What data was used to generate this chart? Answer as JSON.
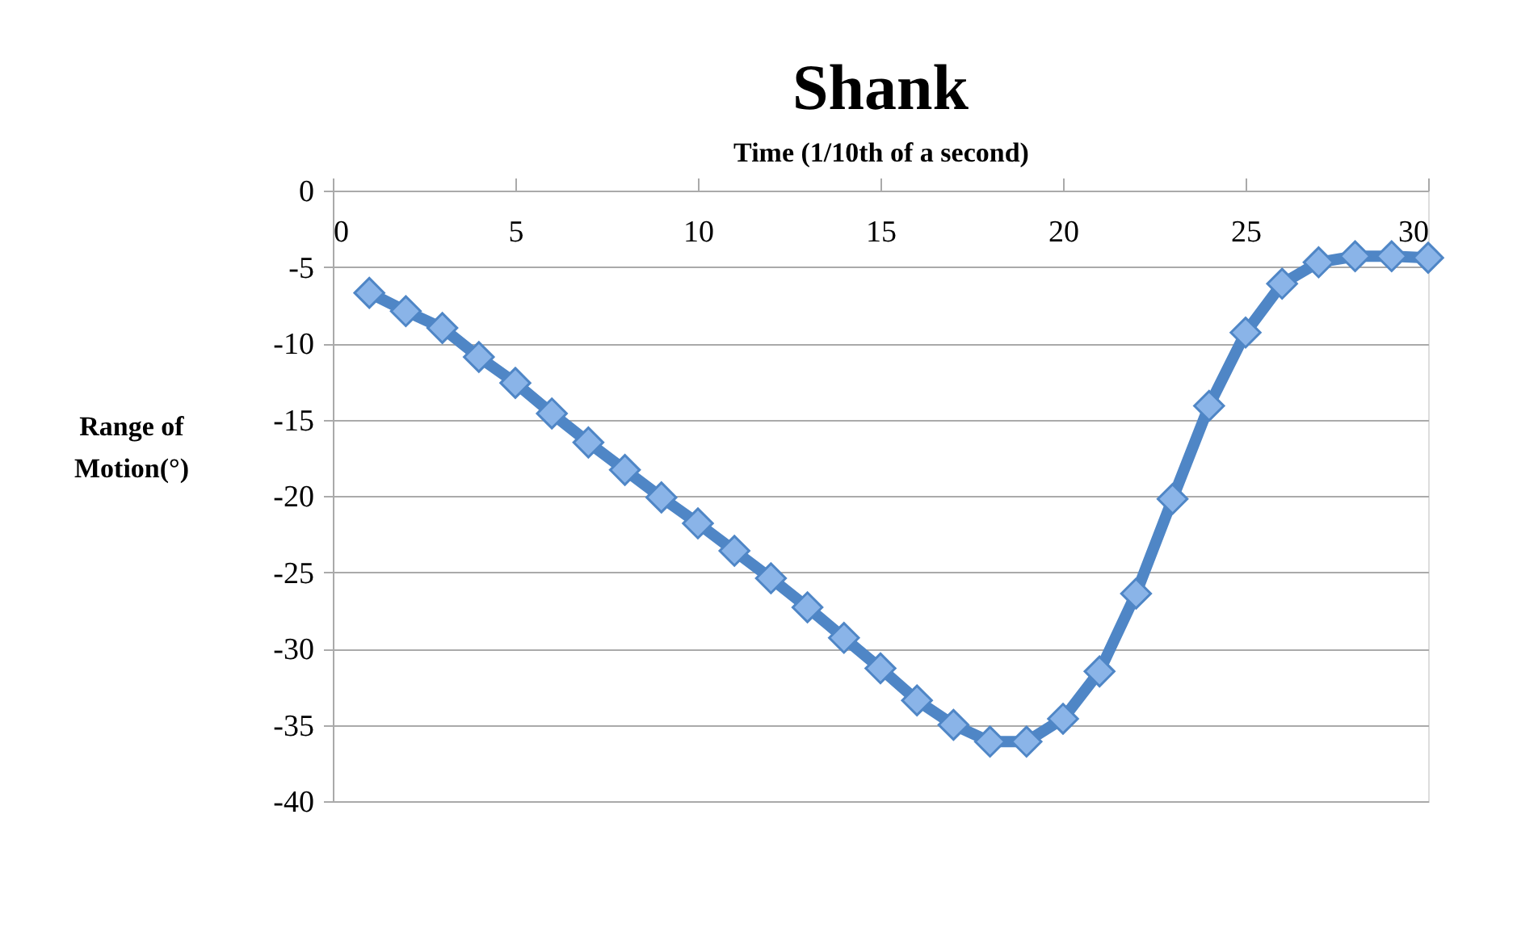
{
  "chart_data": {
    "type": "line",
    "title": "Shank",
    "xlabel": "Time (1/10th of a second)",
    "ylabel": "Range of Motion(°)",
    "x": [
      1,
      2,
      3,
      4,
      5,
      6,
      7,
      8,
      9,
      10,
      11,
      12,
      13,
      14,
      15,
      16,
      17,
      18,
      19,
      20,
      21,
      22,
      23,
      24,
      25,
      26,
      27,
      28,
      29,
      30
    ],
    "series": [
      {
        "color": "#4f86c6",
        "values": [
          -6.7,
          -7.9,
          -9.0,
          -10.9,
          -12.6,
          -14.6,
          -16.5,
          -18.3,
          -20.1,
          -21.8,
          -23.6,
          -25.4,
          -27.3,
          -29.3,
          -31.3,
          -33.4,
          -35.0,
          -36.1,
          -36.1,
          -34.6,
          -31.5,
          -26.4,
          -20.2,
          -14.1,
          -9.3,
          -6.1,
          -4.7,
          -4.3,
          -4.3,
          -4.4
        ]
      }
    ],
    "xlim": [
      0,
      30
    ],
    "xticks": [
      0,
      5,
      10,
      15,
      20,
      25,
      30
    ],
    "ylim": [
      -40,
      0
    ],
    "yticks": [
      0,
      -5,
      -10,
      -15,
      -20,
      -25,
      -30,
      -35,
      -40
    ],
    "grid": "y",
    "marker": "diamond",
    "line_style": "solid"
  }
}
